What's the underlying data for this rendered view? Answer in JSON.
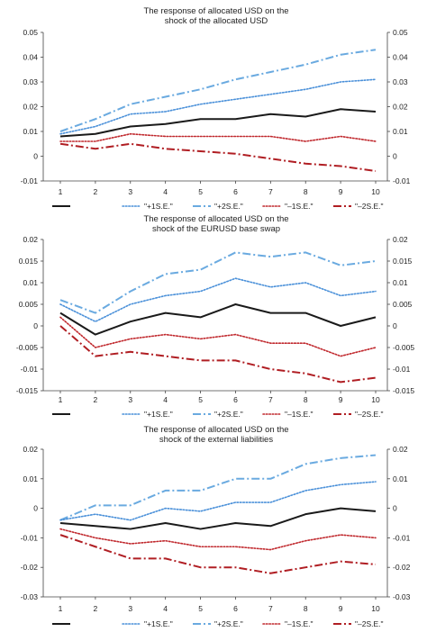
{
  "chart_data": [
    {
      "type": "line",
      "title": "The response of allocated USD on the\nshock of the allocated USD",
      "x": [
        1,
        2,
        3,
        4,
        5,
        6,
        7,
        8,
        9,
        10
      ],
      "ylim": [
        -0.01,
        0.05
      ],
      "yticks": [
        -0.01,
        0,
        0.01,
        0.02,
        0.03,
        0.04,
        0.05
      ],
      "ytick_labels": [
        "-0.01",
        "0",
        "0.01",
        "0.02",
        "0.03",
        "0.04",
        "0.05"
      ],
      "series": [
        {
          "name": "",
          "style": "solid",
          "color": "#1a1a1a",
          "values": [
            0.008,
            0.009,
            0.012,
            0.013,
            0.015,
            0.015,
            0.017,
            0.016,
            0.019,
            0.018
          ]
        },
        {
          "name": "\"+1S.E.\"",
          "style": "dotted",
          "color": "#4a90d9",
          "values": [
            0.009,
            0.012,
            0.017,
            0.018,
            0.021,
            0.023,
            0.025,
            0.027,
            0.03,
            0.031
          ]
        },
        {
          "name": "\"+2S.E.\"",
          "style": "dashdot",
          "color": "#6aaae0",
          "values": [
            0.01,
            0.015,
            0.021,
            0.024,
            0.027,
            0.031,
            0.034,
            0.037,
            0.041,
            0.043
          ]
        },
        {
          "name": "\"–1S.E.\"",
          "style": "dotted",
          "color": "#c0282d",
          "values": [
            0.006,
            0.006,
            0.009,
            0.008,
            0.008,
            0.008,
            0.008,
            0.006,
            0.008,
            0.006
          ]
        },
        {
          "name": "\"–2S.E.\"",
          "style": "dashdot",
          "color": "#b01e23",
          "values": [
            0.005,
            0.003,
            0.005,
            0.003,
            0.002,
            0.001,
            -0.001,
            -0.003,
            -0.004,
            -0.006
          ]
        }
      ]
    },
    {
      "type": "line",
      "title": "The response of allocated USD on the\nshock of the EURUSD base swap",
      "x": [
        1,
        2,
        3,
        4,
        5,
        6,
        7,
        8,
        9,
        10
      ],
      "ylim": [
        -0.015,
        0.02
      ],
      "yticks": [
        -0.015,
        -0.01,
        -0.005,
        0,
        0.005,
        0.01,
        0.015,
        0.02
      ],
      "ytick_labels": [
        "-0.015",
        "-0.01",
        "-0.005",
        "0",
        "0.005",
        "0.01",
        "0.015",
        "0.02"
      ],
      "series": [
        {
          "name": "",
          "style": "solid",
          "color": "#1a1a1a",
          "values": [
            0.003,
            -0.002,
            0.001,
            0.003,
            0.002,
            0.005,
            0.003,
            0.003,
            0.0,
            0.002
          ]
        },
        {
          "name": "\"+1S.E.\"",
          "style": "dotted",
          "color": "#4a90d9",
          "values": [
            0.005,
            0.001,
            0.005,
            0.007,
            0.008,
            0.011,
            0.009,
            0.01,
            0.007,
            0.008
          ]
        },
        {
          "name": "\"+2S.E.\"",
          "style": "dashdot",
          "color": "#6aaae0",
          "values": [
            0.006,
            0.003,
            0.008,
            0.012,
            0.013,
            0.017,
            0.016,
            0.017,
            0.014,
            0.015
          ]
        },
        {
          "name": "\"–1S.E.\"",
          "style": "dotted",
          "color": "#c0282d",
          "values": [
            0.002,
            -0.005,
            -0.003,
            -0.002,
            -0.003,
            -0.002,
            -0.004,
            -0.004,
            -0.007,
            -0.005
          ]
        },
        {
          "name": "\"–2S.E.\"",
          "style": "dashdot",
          "color": "#b01e23",
          "values": [
            0.0,
            -0.007,
            -0.006,
            -0.007,
            -0.008,
            -0.008,
            -0.01,
            -0.011,
            -0.013,
            -0.012
          ]
        }
      ]
    },
    {
      "type": "line",
      "title": "The response of allocated USD on the\nshock of the external liabilities",
      "x": [
        1,
        2,
        3,
        4,
        5,
        6,
        7,
        8,
        9,
        10
      ],
      "ylim": [
        -0.03,
        0.02
      ],
      "yticks": [
        -0.03,
        -0.02,
        -0.01,
        0,
        0.01,
        0.02
      ],
      "ytick_labels": [
        "-0.03",
        "-0.02",
        "-0.01",
        "0",
        "0.01",
        "0.02"
      ],
      "series": [
        {
          "name": "",
          "style": "solid",
          "color": "#1a1a1a",
          "values": [
            -0.005,
            -0.006,
            -0.007,
            -0.005,
            -0.007,
            -0.005,
            -0.006,
            -0.002,
            0.0,
            -0.001
          ]
        },
        {
          "name": "\"+1S.E.\"",
          "style": "dotted",
          "color": "#4a90d9",
          "values": [
            -0.004,
            -0.002,
            -0.004,
            0.0,
            -0.001,
            0.002,
            0.002,
            0.006,
            0.008,
            0.009
          ]
        },
        {
          "name": "\"+2S.E.\"",
          "style": "dashdot",
          "color": "#6aaae0",
          "values": [
            -0.004,
            0.001,
            0.001,
            0.006,
            0.006,
            0.01,
            0.01,
            0.015,
            0.017,
            0.018
          ]
        },
        {
          "name": "\"–1S.E.\"",
          "style": "dotted",
          "color": "#c0282d",
          "values": [
            -0.007,
            -0.01,
            -0.012,
            -0.011,
            -0.013,
            -0.013,
            -0.014,
            -0.011,
            -0.009,
            -0.01
          ]
        },
        {
          "name": "\"–2S.E.\"",
          "style": "dashdot",
          "color": "#b01e23",
          "values": [
            -0.009,
            -0.013,
            -0.017,
            -0.017,
            -0.02,
            -0.02,
            -0.022,
            -0.02,
            -0.018,
            -0.019
          ]
        }
      ]
    }
  ]
}
